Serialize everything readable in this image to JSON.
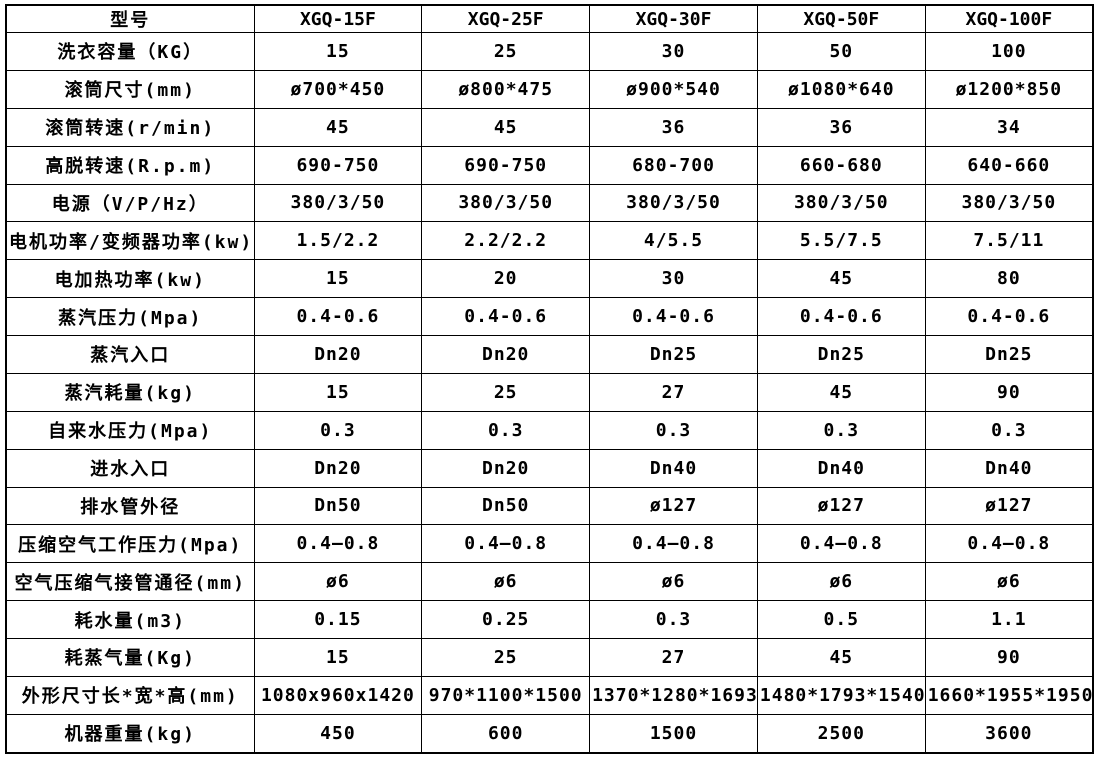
{
  "colors": {
    "background": "#ffffff",
    "border": "#000000",
    "text": "#000000"
  },
  "table": {
    "columns": [
      "型号",
      "XGQ-15F",
      "XGQ-25F",
      "XGQ-30F",
      "XGQ-50F",
      "XGQ-100F"
    ],
    "rows": [
      {
        "label": "洗衣容量（KG）",
        "values": [
          "15",
          "25",
          "30",
          "50",
          "100"
        ]
      },
      {
        "label": "滚筒尺寸(mm)",
        "values": [
          "ø700*450",
          "ø800*475",
          "ø900*540",
          "ø1080*640",
          "ø1200*850"
        ]
      },
      {
        "label": "滚筒转速(r/min)",
        "values": [
          "45",
          "45",
          "36",
          "36",
          "34"
        ]
      },
      {
        "label": "高脱转速(R.p.m)",
        "values": [
          "690-750",
          "690-750",
          "680-700",
          "660-680",
          "640-660"
        ]
      },
      {
        "label": "电源（V/P/Hz）",
        "values": [
          "380/3/50",
          "380/3/50",
          "380/3/50",
          "380/3/50",
          "380/3/50"
        ]
      },
      {
        "label": "电机功率/变频器功率(kw)",
        "values": [
          "1.5/2.2",
          "2.2/2.2",
          "4/5.5",
          "5.5/7.5",
          "7.5/11"
        ]
      },
      {
        "label": "电加热功率(kw)",
        "values": [
          "15",
          "20",
          "30",
          "45",
          "80"
        ]
      },
      {
        "label": "蒸汽压力(Mpa)",
        "values": [
          "0.4-0.6",
          "0.4-0.6",
          "0.4-0.6",
          "0.4-0.6",
          "0.4-0.6"
        ]
      },
      {
        "label": "蒸汽入口",
        "values": [
          "Dn20",
          "Dn20",
          "Dn25",
          "Dn25",
          "Dn25"
        ]
      },
      {
        "label": "蒸汽耗量(kg)",
        "values": [
          "15",
          "25",
          "27",
          "45",
          "90"
        ]
      },
      {
        "label": "自来水压力(Mpa)",
        "values": [
          "0.3",
          "0.3",
          "0.3",
          "0.3",
          "0.3"
        ]
      },
      {
        "label": "进水入口",
        "values": [
          "Dn20",
          "Dn20",
          "Dn40",
          "Dn40",
          "Dn40"
        ]
      },
      {
        "label": "排水管外径",
        "values": [
          "Dn50",
          "Dn50",
          "ø127",
          "ø127",
          "ø127"
        ]
      },
      {
        "label": "压缩空气工作压力(Mpa)",
        "values": [
          "0.4—0.8",
          "0.4—0.8",
          "0.4—0.8",
          "0.4—0.8",
          "0.4—0.8"
        ]
      },
      {
        "label": "空气压缩气接管通径(mm)",
        "values": [
          "ø6",
          "ø6",
          "ø6",
          "ø6",
          "ø6"
        ]
      },
      {
        "label": "耗水量(m3)",
        "values": [
          "0.15",
          "0.25",
          "0.3",
          "0.5",
          "1.1"
        ]
      },
      {
        "label": "耗蒸气量(Kg)",
        "values": [
          "15",
          "25",
          "27",
          "45",
          "90"
        ]
      },
      {
        "label": "外形尺寸长*宽*高(mm)",
        "values": [
          "1080x960x1420",
          "970*1100*1500",
          "1370*1280*1693",
          "1480*1793*1540",
          "1660*1955*1950"
        ]
      },
      {
        "label": "机器重量(kg)",
        "values": [
          "450",
          "600",
          "1500",
          "2500",
          "3600"
        ]
      }
    ]
  }
}
